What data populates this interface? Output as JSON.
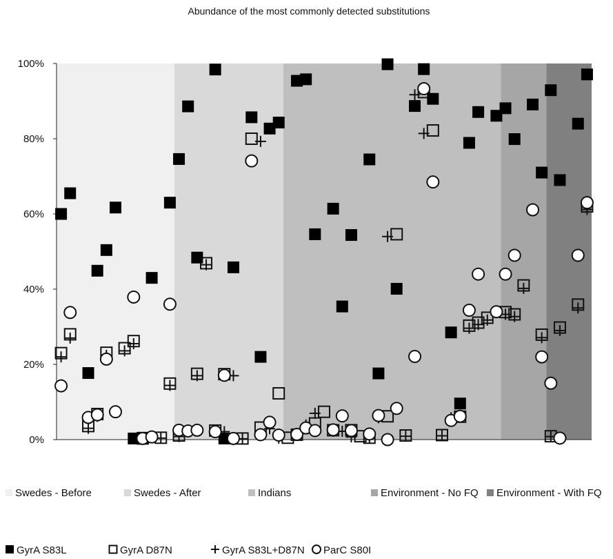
{
  "chart_data": {
    "type": "scatter",
    "title": "Abundance of the most commonly detected substitutions",
    "xlabel": "",
    "ylabel": "",
    "ylim": [
      0,
      100
    ],
    "y_ticks": [
      "0%",
      "20%",
      "40%",
      "60%",
      "80%",
      "100%"
    ],
    "grid": false,
    "legend_position": "bottom",
    "sample_count": 59,
    "groups": [
      {
        "name": "Swedes - Before",
        "color": "#f0f0f0",
        "range": [
          1,
          13
        ]
      },
      {
        "name": "Swedes - After",
        "color": "#d9d9d9",
        "range": [
          14,
          25
        ]
      },
      {
        "name": "Indians",
        "color": "#bfbfbf",
        "range": [
          26,
          49
        ]
      },
      {
        "name": "Environment - No FQ",
        "color": "#a6a6a6",
        "range": [
          50,
          54
        ]
      },
      {
        "name": "Environment - With FQ",
        "color": "#808080",
        "range": [
          55,
          59
        ]
      }
    ],
    "series": [
      {
        "name": "GyrA S83L",
        "marker": "filled-square",
        "values": [
          60,
          65.5,
          17.7,
          44.9,
          50.4,
          61.7,
          0.3,
          0.5,
          43,
          63,
          74.6,
          88.6,
          48.4,
          98.4,
          0.3,
          45.8,
          85.7,
          22,
          82.7,
          84.3,
          95.4,
          95.8,
          54.6,
          61.4,
          35.4,
          54.4,
          74.5,
          17.6,
          99.8,
          40.1,
          88.7,
          98.5,
          90.6,
          28.5,
          9.6,
          78.9,
          87.1,
          86.1,
          88.1,
          79.9,
          89.1,
          71,
          92.9,
          69,
          84,
          97.1
        ]
      },
      {
        "name": "GyrA D87N",
        "marker": "open-square",
        "values": [
          23,
          28,
          3.6,
          6.8,
          23.1,
          24.3,
          26.2,
          0.3,
          0.5,
          14.9,
          1.1,
          17.5,
          46.9,
          2.4,
          17.4,
          0.3,
          80,
          3.2,
          12.3,
          0.5,
          1.3,
          4.3,
          7.4,
          2.5,
          2.5,
          0.9,
          0.5,
          6.2,
          54.6,
          1.1,
          92.4,
          82.2,
          1.2,
          6.1,
          30.3,
          31.1,
          32.4,
          33.9,
          33.3,
          41,
          27.9,
          0.9,
          29.8,
          35.9,
          62
        ]
      },
      {
        "name": "GyrA S83L+D87N",
        "marker": "plus",
        "values": [
          22,
          27,
          3,
          6.2,
          22.4,
          23.6,
          25.5,
          0.3,
          0.4,
          14.4,
          0.8,
          17,
          46.5,
          2.1,
          17,
          0.2,
          79.3,
          2.9,
          0.4,
          1.1,
          3.9,
          7,
          2.2,
          2.2,
          0.7,
          0.4,
          5.8,
          54,
          0.9,
          91.7,
          81.4,
          1,
          5.8,
          29.6,
          30.6,
          31.8,
          33.3,
          32.7,
          40.2,
          27.1,
          0.8,
          29,
          35,
          61.2
        ]
      },
      {
        "name": "ParC S80I",
        "marker": "open-circle",
        "values": [
          14.3,
          33.8,
          5.9,
          6.6,
          21.4,
          7.4,
          37.9,
          0.3,
          0.7,
          36,
          2.5,
          2.3,
          2.5,
          2.1,
          17.1,
          0.3,
          74.1,
          1.3,
          4.6,
          1.2,
          1.4,
          3.1,
          2.4,
          2.6,
          6.3,
          2.4,
          1.5,
          6.4,
          0,
          8.3,
          22.1,
          93.3,
          68.5,
          5.1,
          6.2,
          34.4,
          44,
          34,
          44,
          49,
          61.1,
          22,
          15,
          0.4,
          49,
          63
        ]
      }
    ],
    "legend": [
      {
        "name": "GyrA S83L"
      },
      {
        "name": "GyrA D87N"
      },
      {
        "name": "GyrA S83L+D87N"
      },
      {
        "name": "ParC S80I"
      }
    ]
  }
}
